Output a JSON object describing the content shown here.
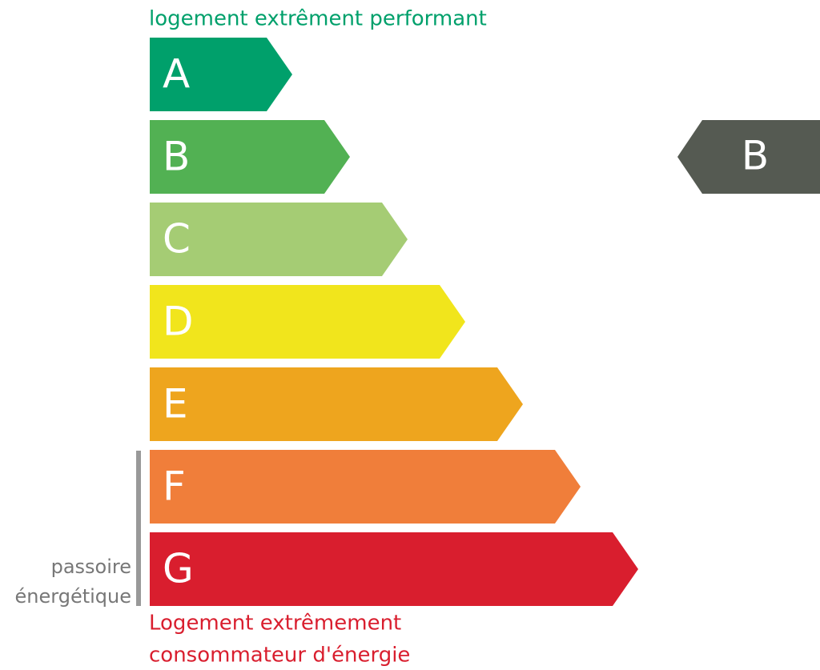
{
  "header": {
    "title": "logement extrêment performant"
  },
  "classes": [
    {
      "letter": "A",
      "color": "#00a06b"
    },
    {
      "letter": "B",
      "color": "#52b153"
    },
    {
      "letter": "C",
      "color": "#a5cc74"
    },
    {
      "letter": "D",
      "color": "#f1e51c"
    },
    {
      "letter": "E",
      "color": "#eea51e"
    },
    {
      "letter": "F",
      "color": "#f07e3a"
    },
    {
      "letter": "G",
      "color": "#d91e2e"
    }
  ],
  "footer": {
    "lines": [
      "Logement extrêmement",
      "consommateur d'énergie"
    ]
  },
  "side_note": {
    "lines": [
      "passoire",
      "énergétique"
    ]
  },
  "indicator": {
    "letter": "B",
    "color": "#555a52"
  }
}
